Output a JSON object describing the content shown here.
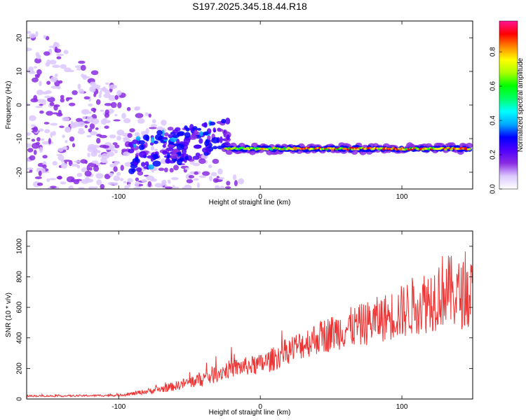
{
  "title": "S197.2025.345.18.44.R18",
  "chart_data": [
    {
      "type": "heatmap",
      "xlabel": "Height of straight line (km)",
      "ylabel": "Frequency (Hz)",
      "xlim": [
        -165,
        150
      ],
      "ylim": [
        -25,
        25
      ],
      "xticks": [
        -100,
        0,
        100
      ],
      "yticks": [
        -20,
        -10,
        0,
        10,
        20
      ],
      "colorbar": {
        "label": "Normalized spectral amplitude",
        "range": [
          0,
          0.98
        ],
        "ticks": [
          "0.0",
          "0.2",
          "0.4",
          "0.6",
          "0.8"
        ],
        "colors": [
          "#ffffff",
          "#dcc8ff",
          "#8a2be2",
          "#5000ff",
          "#0000ff",
          "#00aaff",
          "#00ffff",
          "#00ff66",
          "#00ff00",
          "#aaff00",
          "#ffff00",
          "#ff8800",
          "#ff0000",
          "#ff1493"
        ]
      },
      "features": {
        "tone_band_frequency_hz": -13,
        "tone_band_x_range_km": [
          -25,
          148
        ],
        "noise_region_x_range_km": [
          -165,
          -25
        ]
      }
    },
    {
      "type": "line",
      "xlabel": "Height of straight line (km)",
      "ylabel": "SNR (10 * v/v)",
      "xlim": [
        -165,
        150
      ],
      "ylim": [
        0,
        1100
      ],
      "xticks": [
        -100,
        0,
        100
      ],
      "yticks": [
        0,
        200,
        400,
        600,
        800,
        1000
      ],
      "series": [
        {
          "name": "SNR",
          "color": "#ee3333",
          "x": [
            -165,
            -140,
            -120,
            -100,
            -90,
            -80,
            -70,
            -60,
            -50,
            -40,
            -30,
            -20,
            -10,
            0,
            10,
            20,
            30,
            40,
            50,
            60,
            70,
            80,
            90,
            100,
            110,
            120,
            130,
            140,
            150
          ],
          "y": [
            20,
            20,
            22,
            25,
            35,
            50,
            65,
            85,
            110,
            135,
            170,
            200,
            215,
            225,
            265,
            320,
            360,
            400,
            430,
            460,
            480,
            510,
            540,
            570,
            620,
            650,
            720,
            680,
            700
          ],
          "spread": [
            6,
            6,
            6,
            8,
            12,
            18,
            25,
            30,
            40,
            55,
            60,
            60,
            60,
            70,
            80,
            90,
            100,
            110,
            120,
            130,
            140,
            150,
            160,
            180,
            200,
            220,
            250,
            230,
            220
          ]
        }
      ]
    }
  ]
}
